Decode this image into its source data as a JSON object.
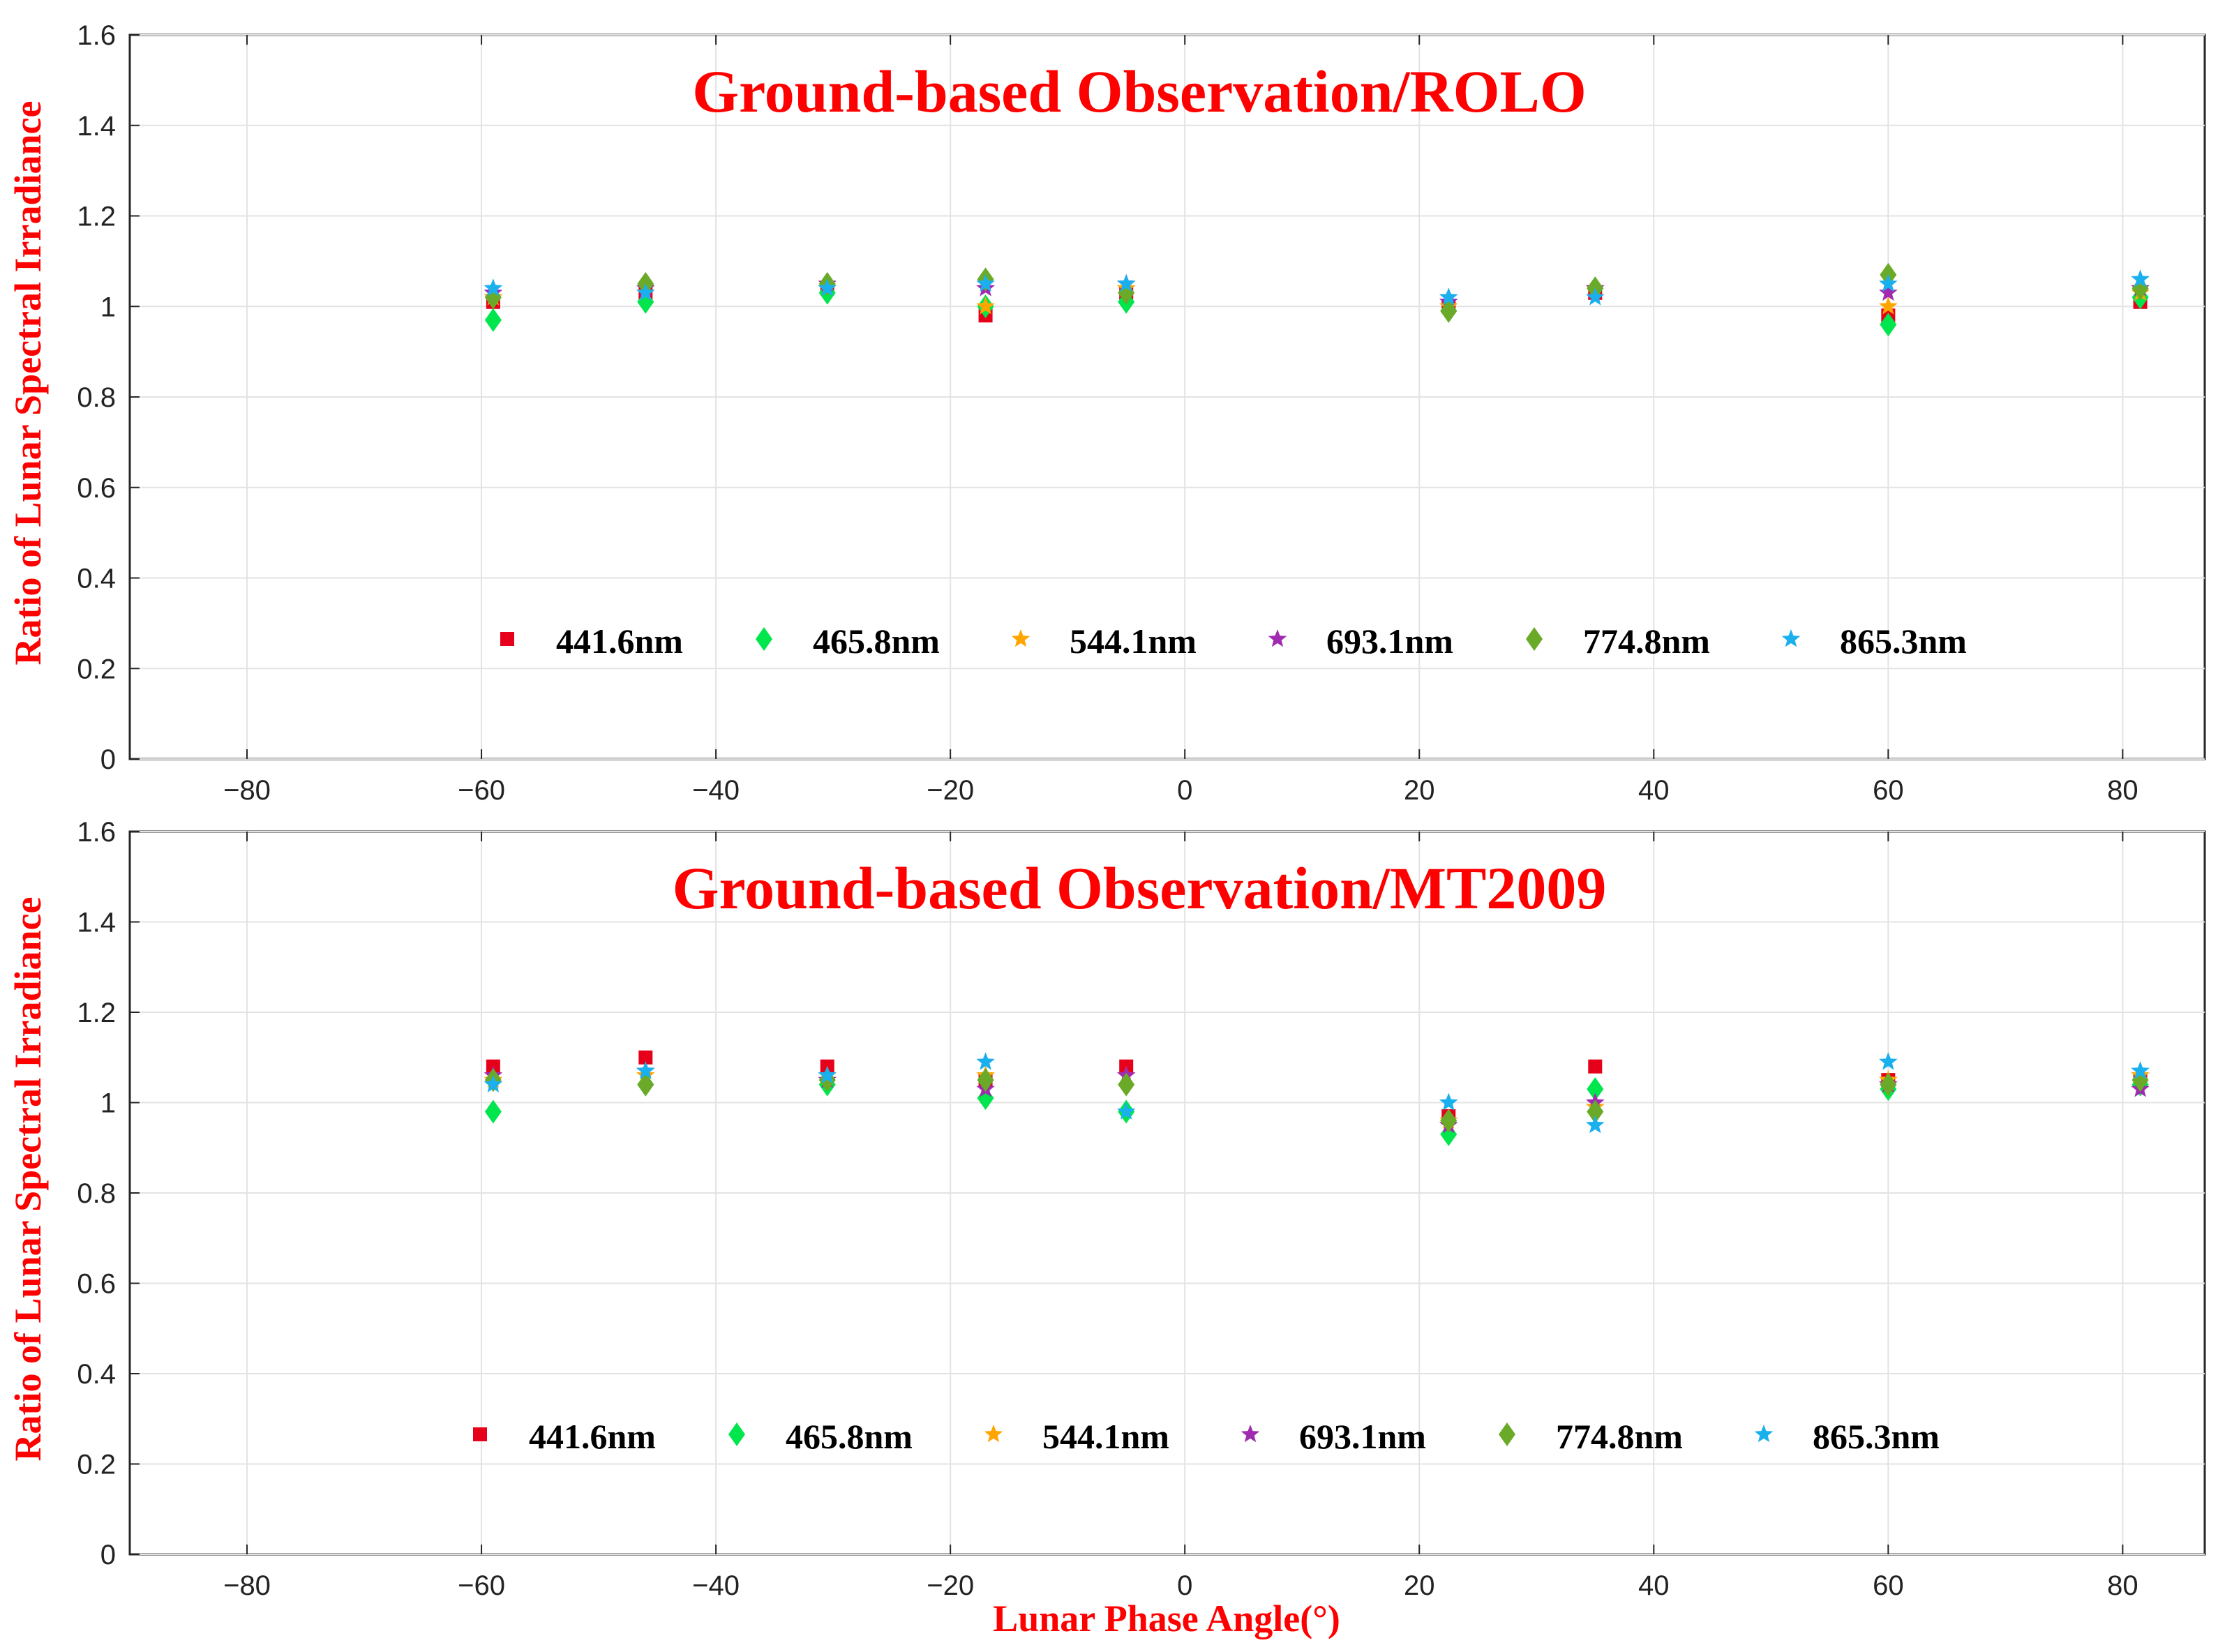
{
  "colors": {
    "title": "#ff0000",
    "axis_label": "#ff0000",
    "grid": "#e3e3e3",
    "axes": "#262626"
  },
  "chart_data": [
    {
      "type": "scatter",
      "title": "Ground-based Observation/ROLO",
      "xlabel": "",
      "ylabel": "Ratio of Lunar Spectral Irradiance",
      "xlim": [
        -90,
        87
      ],
      "ylim": [
        0,
        1.6
      ],
      "xticks": [
        -80,
        -60,
        -40,
        -20,
        0,
        20,
        40,
        60,
        80
      ],
      "xtick_labels": [
        "−80",
        "−60",
        "−40",
        "−20",
        "0",
        "20",
        "40",
        "60",
        "80"
      ],
      "yticks": [
        0,
        0.2,
        0.4,
        0.6,
        0.8,
        1,
        1.2,
        1.4,
        1.6
      ],
      "ytick_labels": [
        "0",
        "0.2",
        "0.4",
        "0.6",
        "0.8",
        "1",
        "1.2",
        "1.4",
        "1.6"
      ],
      "grid": true,
      "legend_position": "bottom-center",
      "x": [
        -59,
        -46,
        -30.5,
        -17,
        -5,
        22.5,
        35,
        60,
        81.5
      ],
      "series": [
        {
          "name": "441.6nm",
          "marker": "square",
          "color": "#e6001a",
          "values": [
            1.01,
            1.03,
            1.04,
            0.98,
            1.03,
            1.0,
            1.03,
            0.98,
            1.01
          ]
        },
        {
          "name": "465.8nm",
          "marker": "diamond",
          "color": "#00e64c",
          "values": [
            0.97,
            1.01,
            1.03,
            1.0,
            1.01,
            0.99,
            1.04,
            0.96,
            1.02
          ]
        },
        {
          "name": "544.1nm",
          "marker": "star",
          "color": "#ffa500",
          "values": [
            1.02,
            1.03,
            1.04,
            1.0,
            1.04,
            1.0,
            1.04,
            1.0,
            1.03
          ]
        },
        {
          "name": "693.1nm",
          "marker": "star",
          "color": "#a02ab0",
          "values": [
            1.03,
            1.04,
            1.05,
            1.04,
            1.05,
            1.01,
            1.04,
            1.03,
            1.04
          ]
        },
        {
          "name": "774.8nm",
          "marker": "diamond",
          "color": "#6aaa28",
          "values": [
            1.02,
            1.05,
            1.05,
            1.06,
            1.03,
            0.99,
            1.04,
            1.07,
            1.04
          ]
        },
        {
          "name": "865.3nm",
          "marker": "star",
          "color": "#1ab0ee",
          "values": [
            1.04,
            1.03,
            1.04,
            1.05,
            1.05,
            1.02,
            1.02,
            1.05,
            1.06
          ]
        }
      ]
    },
    {
      "type": "scatter",
      "title": "Ground-based Observation/MT2009",
      "xlabel": "Lunar Phase Angle(°)",
      "ylabel": "Ratio of Lunar Spectral Irradiance",
      "xlim": [
        -90,
        87
      ],
      "ylim": [
        0,
        1.6
      ],
      "xticks": [
        -80,
        -60,
        -40,
        -20,
        0,
        20,
        40,
        60,
        80
      ],
      "xtick_labels": [
        "−80",
        "−60",
        "−40",
        "−20",
        "0",
        "20",
        "40",
        "60",
        "80"
      ],
      "yticks": [
        0,
        0.2,
        0.4,
        0.6,
        0.8,
        1,
        1.2,
        1.4,
        1.6
      ],
      "ytick_labels": [
        "0",
        "0.2",
        "0.4",
        "0.6",
        "0.8",
        "1",
        "1.2",
        "1.4",
        "1.6"
      ],
      "grid": true,
      "legend_position": "bottom-center",
      "x": [
        -59,
        -46,
        -30.5,
        -17,
        -5,
        22.5,
        35,
        60,
        81.5
      ],
      "series": [
        {
          "name": "441.6nm",
          "marker": "square",
          "color": "#e6001a",
          "values": [
            1.08,
            1.1,
            1.08,
            1.05,
            1.08,
            0.97,
            1.08,
            1.05,
            1.05
          ]
        },
        {
          "name": "465.8nm",
          "marker": "diamond",
          "color": "#00e64c",
          "values": [
            0.98,
            1.04,
            1.04,
            1.01,
            0.98,
            0.93,
            1.03,
            1.03,
            1.04
          ]
        },
        {
          "name": "544.1nm",
          "marker": "star",
          "color": "#ffa500",
          "values": [
            1.05,
            1.06,
            1.06,
            1.06,
            1.06,
            0.96,
            0.99,
            1.05,
            1.06
          ]
        },
        {
          "name": "693.1nm",
          "marker": "star",
          "color": "#a02ab0",
          "values": [
            1.06,
            1.07,
            1.05,
            1.03,
            1.06,
            0.95,
            1.0,
            1.04,
            1.03
          ]
        },
        {
          "name": "774.8nm",
          "marker": "diamond",
          "color": "#6aaa28",
          "values": [
            1.05,
            1.04,
            1.05,
            1.05,
            1.04,
            0.96,
            0.98,
            1.04,
            1.05
          ]
        },
        {
          "name": "865.3nm",
          "marker": "star",
          "color": "#1ab0ee",
          "values": [
            1.04,
            1.07,
            1.06,
            1.09,
            0.98,
            1.0,
            0.95,
            1.09,
            1.07
          ]
        }
      ]
    }
  ]
}
